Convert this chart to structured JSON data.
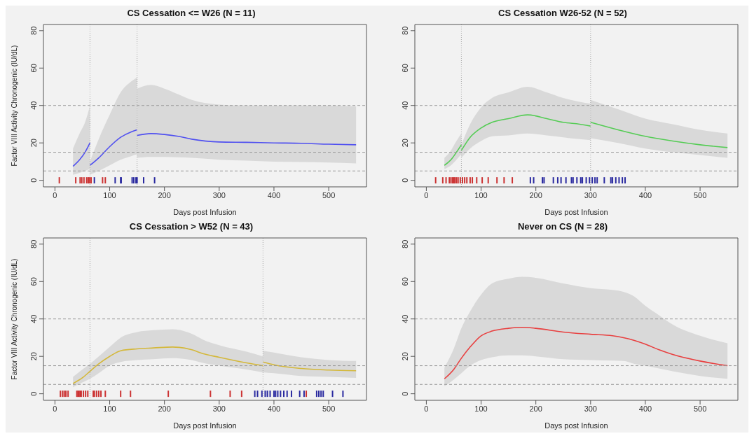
{
  "chart_data": [
    {
      "type": "line",
      "title": "CS Cessation <= W26 (N = 11)",
      "xlabel": "Days post Infusion",
      "ylabel": "Factor VIII Activity Chronogenic (IU/dL)",
      "xlim": [
        -21,
        569
      ],
      "ylim": [
        -3.5,
        83.3
      ],
      "xticks": [
        0,
        100,
        200,
        300,
        400,
        500
      ],
      "yticks": [
        0,
        20,
        40,
        60,
        80
      ],
      "grid": false,
      "legend": false,
      "ref_lines": [
        {
          "axis": "y",
          "value": 5,
          "color": "#999999",
          "line_style": "dashed"
        },
        {
          "axis": "y",
          "value": 15,
          "color": "#999999",
          "line_style": "dashed"
        },
        {
          "axis": "y",
          "value": 40,
          "color": "#999999",
          "line_style": "dashed"
        },
        {
          "axis": "x",
          "value": 64,
          "color": "#aaaaaa",
          "line_style": "dotted"
        },
        {
          "axis": "x",
          "value": 150,
          "color": "#aaaaaa",
          "line_style": "dotted"
        }
      ],
      "series": [
        {
          "type": "line",
          "color": "#5050f0",
          "x": [
            33,
            45,
            55,
            64
          ],
          "values": [
            7.5,
            11,
            15,
            20
          ],
          "lower": [
            3,
            4,
            5,
            6
          ],
          "upper": [
            17,
            25,
            31,
            40
          ]
        },
        {
          "type": "line",
          "color": "#5050f0",
          "x": [
            64,
            80,
            100,
            120,
            140,
            150
          ],
          "values": [
            8,
            12,
            18,
            23,
            26,
            27
          ],
          "lower": [
            3,
            5,
            8,
            11,
            13,
            14
          ],
          "upper": [
            10,
            22,
            35,
            47,
            53,
            55
          ]
        },
        {
          "type": "line",
          "color": "#5050f0",
          "x": [
            150,
            175,
            200,
            225,
            250,
            300,
            350,
            400,
            450,
            500,
            550
          ],
          "values": [
            24,
            25,
            24.5,
            23.5,
            22,
            20.5,
            20.3,
            20,
            19.8,
            19.3,
            19
          ],
          "lower": [
            12,
            12.5,
            12.5,
            12.3,
            12,
            11,
            10.5,
            10,
            9.8,
            9.5,
            9
          ],
          "upper": [
            49,
            51,
            49,
            46,
            43,
            40.5,
            40,
            40,
            40,
            40,
            39.5
          ]
        },
        {
          "type": "scatter",
          "color": "#cc3333",
          "x": [
            8,
            38,
            46,
            49,
            53,
            58,
            61,
            63,
            66,
            87,
            92
          ],
          "values": [
            0,
            0,
            0,
            0,
            0,
            0,
            0,
            0,
            0,
            0,
            0
          ]
        },
        {
          "type": "scatter",
          "color": "#2a2aa0",
          "x": [
            72,
            110,
            120,
            121,
            141,
            144,
            148,
            150,
            162,
            182
          ],
          "values": [
            0,
            0,
            0,
            0,
            0,
            0,
            0,
            0,
            0,
            0
          ]
        }
      ]
    },
    {
      "type": "line",
      "title": "CS Cessation W26-52 (N = 52)",
      "xlabel": "Days post Infusion",
      "xlim": [
        -21,
        569
      ],
      "ylim": [
        -3.5,
        83.3
      ],
      "xticks": [
        0,
        100,
        200,
        300,
        400,
        500
      ],
      "yticks": [
        0,
        20,
        40,
        60,
        80
      ],
      "grid": false,
      "legend": false,
      "ref_lines": [
        {
          "axis": "y",
          "value": 5,
          "color": "#999999",
          "line_style": "dashed"
        },
        {
          "axis": "y",
          "value": 15,
          "color": "#999999",
          "line_style": "dashed"
        },
        {
          "axis": "y",
          "value": 40,
          "color": "#999999",
          "line_style": "dashed"
        },
        {
          "axis": "x",
          "value": 64,
          "color": "#aaaaaa",
          "line_style": "dotted"
        },
        {
          "axis": "x",
          "value": 300,
          "color": "#aaaaaa",
          "line_style": "dotted"
        }
      ],
      "series": [
        {
          "type": "line",
          "color": "#55cc55",
          "x": [
            33,
            45,
            55,
            64
          ],
          "values": [
            8,
            11,
            15,
            19
          ],
          "lower": [
            6,
            8,
            11,
            14
          ],
          "upper": [
            12,
            16,
            21,
            25
          ]
        },
        {
          "type": "line",
          "color": "#55cc55",
          "x": [
            64,
            80,
            100,
            120,
            150,
            185,
            220,
            250,
            280,
            300
          ],
          "values": [
            16,
            23,
            28,
            31,
            33,
            35,
            33,
            31,
            30,
            29
          ],
          "lower": [
            12,
            17,
            21,
            23.5,
            24,
            25,
            24,
            23,
            22,
            21.5
          ],
          "upper": [
            19,
            30,
            39,
            44,
            47,
            50,
            47,
            44,
            42,
            41
          ]
        },
        {
          "type": "line",
          "color": "#55cc55",
          "x": [
            300,
            350,
            400,
            450,
            500,
            550
          ],
          "values": [
            31,
            27,
            23.5,
            21,
            19,
            17.5
          ],
          "lower": [
            22.5,
            20,
            17,
            15,
            13.5,
            12
          ],
          "upper": [
            43,
            38,
            33,
            30,
            27,
            25
          ]
        },
        {
          "type": "scatter",
          "color": "#cc3333",
          "x": [
            17,
            30,
            36,
            42,
            45,
            48,
            50,
            52,
            55,
            58,
            62,
            66,
            70,
            74,
            80,
            84,
            92,
            102,
            113,
            129,
            142,
            157
          ],
          "values": [
            0,
            0,
            0,
            0,
            0,
            0,
            0,
            0,
            0,
            0,
            0,
            0,
            0,
            0,
            0,
            0,
            0,
            0,
            0,
            0,
            0,
            0
          ]
        },
        {
          "type": "scatter",
          "color": "#2a2aa0",
          "x": [
            190,
            196,
            212,
            215,
            232,
            240,
            246,
            255,
            265,
            268,
            275,
            282,
            285,
            292,
            298,
            303,
            308,
            312,
            325,
            337,
            340,
            346,
            352,
            358,
            363
          ],
          "values": [
            0,
            0,
            0,
            0,
            0,
            0,
            0,
            0,
            0,
            0,
            0,
            0,
            0,
            0,
            0,
            0,
            0,
            0,
            0,
            0,
            0,
            0,
            0,
            0,
            0
          ]
        }
      ]
    },
    {
      "type": "line",
      "title": "CS Cessation > W52 (N = 43)",
      "xlabel": "Days post Infusion",
      "ylabel": "Factor VIII Activity Chronogenic (IU/dL)",
      "xlim": [
        -21,
        569
      ],
      "ylim": [
        -3.5,
        83.3
      ],
      "xticks": [
        0,
        100,
        200,
        300,
        400,
        500
      ],
      "yticks": [
        0,
        20,
        40,
        60,
        80
      ],
      "grid": false,
      "legend": false,
      "ref_lines": [
        {
          "axis": "y",
          "value": 5,
          "color": "#999999",
          "line_style": "dashed"
        },
        {
          "axis": "y",
          "value": 15,
          "color": "#999999",
          "line_style": "dashed"
        },
        {
          "axis": "y",
          "value": 40,
          "color": "#999999",
          "line_style": "dashed"
        },
        {
          "axis": "x",
          "value": 64,
          "color": "#aaaaaa",
          "line_style": "dotted"
        },
        {
          "axis": "x",
          "value": 380,
          "color": "#aaaaaa",
          "line_style": "dotted"
        }
      ],
      "series": [
        {
          "type": "line",
          "color": "#d4b83a",
          "x": [
            33,
            50,
            64,
            80,
            100,
            120,
            150,
            180,
            215,
            250,
            270,
            300,
            350,
            380
          ],
          "values": [
            5.5,
            8.5,
            12,
            16,
            20,
            23,
            24,
            24.5,
            25,
            23.5,
            21.5,
            19.5,
            16.5,
            15
          ],
          "lower": [
            3.5,
            6,
            8,
            11,
            15,
            17,
            18,
            18.5,
            19,
            18,
            16.5,
            15,
            13,
            11.5
          ],
          "upper": [
            9,
            13,
            16,
            20,
            25,
            30,
            33,
            34,
            34.5,
            32,
            29,
            26,
            22.5,
            20
          ]
        },
        {
          "type": "line",
          "color": "#d4b83a",
          "x": [
            380,
            400,
            450,
            500,
            550
          ],
          "values": [
            17,
            15.5,
            13.5,
            12.7,
            12.3
          ],
          "lower": [
            11.5,
            11,
            9.5,
            9,
            8.5
          ],
          "upper": [
            23,
            22,
            19.5,
            18,
            17.5
          ]
        },
        {
          "type": "scatter",
          "color": "#cc3333",
          "x": [
            10,
            14,
            17,
            20,
            24,
            40,
            42,
            44,
            46,
            48,
            52,
            56,
            60,
            70,
            72,
            76,
            80,
            84,
            92,
            120,
            138,
            207,
            284,
            320,
            341,
            459
          ],
          "values": [
            0,
            0,
            0,
            0,
            0,
            0,
            0,
            0,
            0,
            0,
            0,
            0,
            0,
            0,
            0,
            0,
            0,
            0,
            0,
            0,
            0,
            0,
            0,
            0,
            0,
            0
          ]
        },
        {
          "type": "scatter",
          "color": "#2a2aa0",
          "x": [
            365,
            370,
            378,
            384,
            388,
            393,
            400,
            403,
            407,
            412,
            418,
            424,
            432,
            447,
            455,
            478,
            482,
            486,
            490,
            507,
            526
          ],
          "values": [
            0,
            0,
            0,
            0,
            0,
            0,
            0,
            0,
            0,
            0,
            0,
            0,
            0,
            0,
            0,
            0,
            0,
            0,
            0,
            0,
            0
          ]
        }
      ]
    },
    {
      "type": "line",
      "title": "Never on CS (N = 28)",
      "xlabel": "Days post Infusion",
      "xlim": [
        -21,
        569
      ],
      "ylim": [
        -3.5,
        83.3
      ],
      "xticks": [
        0,
        100,
        200,
        300,
        400,
        500
      ],
      "yticks": [
        0,
        20,
        40,
        60,
        80
      ],
      "grid": false,
      "legend": false,
      "ref_lines": [
        {
          "axis": "y",
          "value": 5,
          "color": "#999999",
          "line_style": "dashed"
        },
        {
          "axis": "y",
          "value": 15,
          "color": "#999999",
          "line_style": "dashed"
        },
        {
          "axis": "y",
          "value": 40,
          "color": "#999999",
          "line_style": "dashed"
        }
      ],
      "series": [
        {
          "type": "line",
          "color": "#e84040",
          "x": [
            33,
            50,
            64,
            80,
            100,
            120,
            150,
            175,
            200,
            250,
            300,
            340,
            360,
            380,
            400,
            425,
            450,
            500,
            550
          ],
          "values": [
            8,
            13,
            19,
            25,
            31,
            33.5,
            35,
            35.5,
            35,
            33,
            31.8,
            31,
            30,
            28.5,
            26.5,
            23.5,
            21,
            17.5,
            15
          ],
          "lower": [
            4,
            7.5,
            11,
            15,
            18,
            19.5,
            20.5,
            20.5,
            20,
            18.5,
            18,
            17.7,
            17.5,
            16,
            15,
            13.5,
            12,
            9.5,
            8
          ],
          "upper": [
            14,
            24,
            35,
            44,
            53,
            59,
            61.5,
            62.5,
            62,
            59,
            56.5,
            55.5,
            54.5,
            52,
            47,
            42,
            37,
            31,
            27
          ]
        }
      ]
    }
  ]
}
